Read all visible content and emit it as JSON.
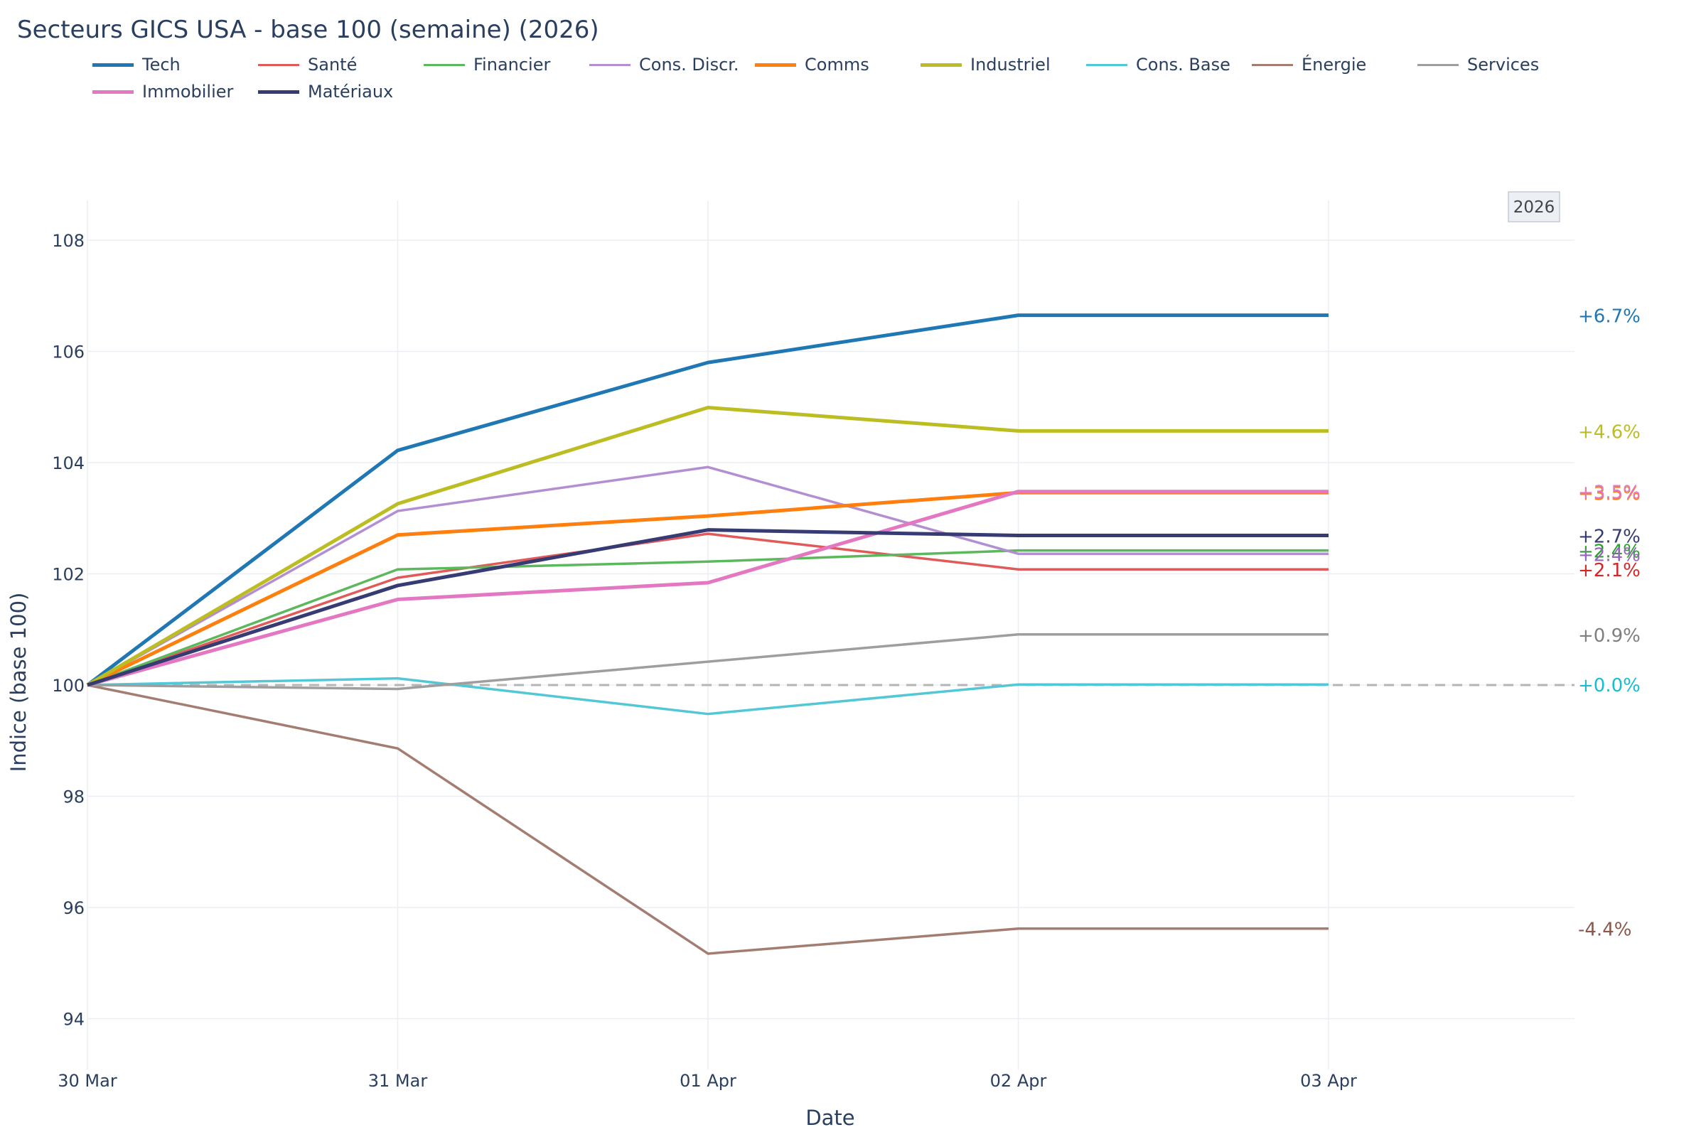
{
  "chart_data": {
    "type": "line",
    "title": "Secteurs GICS USA - base 100 (semaine) (2026)",
    "xlabel": "Date",
    "ylabel": "Indice (base 100)",
    "categories": [
      "30 Mar",
      "31 Mar",
      "01 Apr",
      "02 Apr",
      "03 Apr"
    ],
    "ylim": [
      93.2,
      108.7
    ],
    "yticks": [
      94,
      96,
      98,
      100,
      102,
      104,
      106,
      108
    ],
    "baseline": 100,
    "year_badge": "2026",
    "legend_position": "top-left",
    "series": [
      {
        "name": "Tech",
        "color": "#1f77b4",
        "width": "thick",
        "values": [
          100,
          104.22,
          105.8,
          106.65,
          106.65
        ],
        "end_label": "+6.7%"
      },
      {
        "name": "Santé",
        "color": "#e05a5a",
        "width": "thin",
        "values": [
          100,
          101.93,
          102.72,
          102.08,
          102.08
        ],
        "end_label": "+2.1%",
        "end_label_color": "#d62728"
      },
      {
        "name": "Financier",
        "color": "#5cb85c",
        "width": "thin",
        "values": [
          100,
          102.08,
          102.22,
          102.42,
          102.42
        ],
        "end_label": "+2.4%",
        "end_label_color": "#2ca02c"
      },
      {
        "name": "Cons. Discr.",
        "color": "#b48ed3",
        "width": "thin",
        "values": [
          100,
          103.13,
          103.92,
          102.36,
          102.36
        ],
        "end_label": "+2.4%",
        "end_label_color": "#9467bd"
      },
      {
        "name": "Comms",
        "color": "#ff7f0e",
        "width": "thick",
        "values": [
          100,
          102.7,
          103.04,
          103.46,
          103.46
        ],
        "end_label": "+3.5%"
      },
      {
        "name": "Industriel",
        "color": "#bcbd22",
        "width": "thick",
        "values": [
          100,
          103.26,
          104.99,
          104.57,
          104.57
        ],
        "end_label": "+4.6%"
      },
      {
        "name": "Cons. Base",
        "color": "#52c8d6",
        "width": "thin",
        "values": [
          100,
          100.12,
          99.48,
          100.01,
          100.01
        ],
        "end_label": "+0.0%",
        "end_label_color": "#17becf"
      },
      {
        "name": "Énergie",
        "color": "#a47d72",
        "width": "thin",
        "values": [
          100,
          98.86,
          95.17,
          95.62,
          95.62
        ],
        "end_label": "-4.4%",
        "end_label_color": "#8c564b"
      },
      {
        "name": "Services",
        "color": "#9e9e9e",
        "width": "thin",
        "values": [
          100,
          99.93,
          100.42,
          100.91,
          100.91
        ],
        "end_label": "+0.9%",
        "end_label_color": "#7f7f7f"
      },
      {
        "name": "Immobilier",
        "color": "#e377c2",
        "width": "thick",
        "values": [
          100,
          101.54,
          101.84,
          103.48,
          103.48
        ],
        "end_label": "+3.5%"
      },
      {
        "name": "Matériaux",
        "color": "#363b74",
        "width": "thick",
        "values": [
          100,
          101.79,
          102.79,
          102.69,
          102.69
        ],
        "end_label": "+2.7%"
      }
    ]
  }
}
